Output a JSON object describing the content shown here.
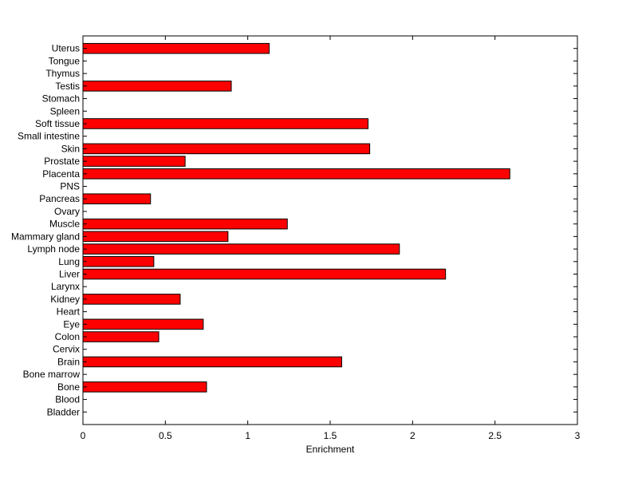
{
  "chart_data": {
    "type": "bar",
    "orientation": "horizontal",
    "categories": [
      "Bladder",
      "Blood",
      "Bone",
      "Bone marrow",
      "Brain",
      "Cervix",
      "Colon",
      "Eye",
      "Heart",
      "Kidney",
      "Larynx",
      "Liver",
      "Lung",
      "Lymph node",
      "Mammary gland",
      "Muscle",
      "Ovary",
      "Pancreas",
      "PNS",
      "Placenta",
      "Prostate",
      "Skin",
      "Small intestine",
      "Soft tissue",
      "Spleen",
      "Stomach",
      "Testis",
      "Thymus",
      "Tongue",
      "Uterus"
    ],
    "values": [
      0,
      0,
      0.75,
      0,
      1.57,
      0,
      0.46,
      0.73,
      0,
      0.59,
      0,
      2.2,
      0.43,
      1.92,
      0.88,
      1.24,
      0,
      0.41,
      0,
      2.59,
      0.62,
      1.74,
      0,
      1.73,
      0,
      0,
      0.9,
      0,
      0,
      1.13
    ],
    "xlabel": "Enrichment",
    "ylabel": "",
    "title": "",
    "xlim": [
      0,
      3
    ],
    "xticks": [
      0,
      0.5,
      1,
      1.5,
      2,
      2.5,
      3
    ],
    "xtick_labels": [
      "0",
      "0.5",
      "1",
      "1.5",
      "2",
      "2.5",
      "3"
    ],
    "bar_color": "#ff0000",
    "edge_color": "#000000",
    "grid": false,
    "legend": "none"
  }
}
